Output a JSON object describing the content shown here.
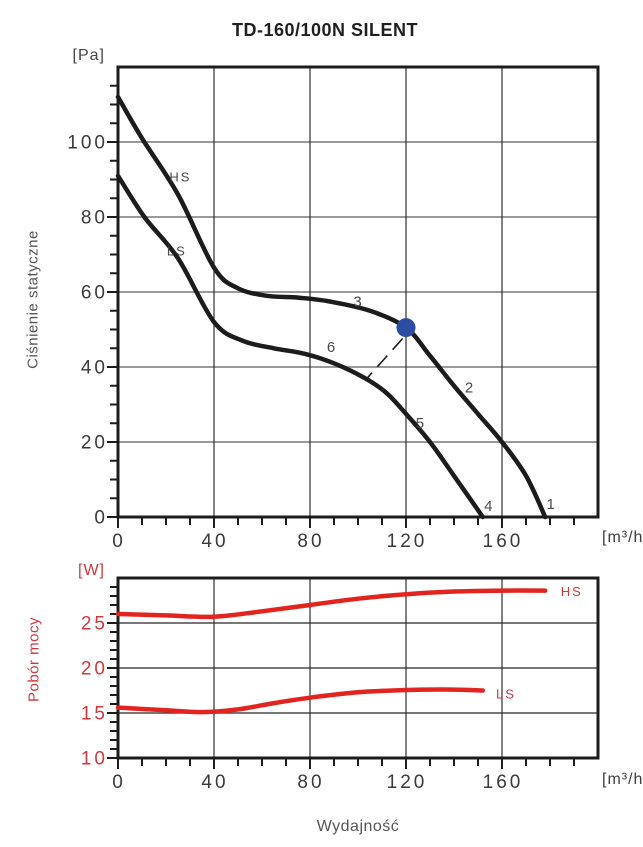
{
  "title": "TD-160/100N SILENT",
  "labels": {
    "pressure_unit": "[Pa]",
    "power_unit": "[W]",
    "flow_unit": "[m³/h]",
    "pressure_axis": "Ciśnienie statyczne",
    "power_axis": "Pobór mocy",
    "flow_axis": "Wydajność"
  },
  "colors": {
    "curve_black": "#1c1c1c",
    "curve_red": "#e22420",
    "red_label": "#cd3a3e",
    "point_blue": "#2c4da1",
    "grid_gray": "#9a9a9a",
    "grid_dark": "#2f2f2f",
    "tick_label": "#3a3a3a",
    "annotation": "#4a4a4a"
  },
  "chart_data": [
    {
      "name": "static-pressure",
      "type": "line",
      "y_unit": "[Pa]",
      "x_unit": "[m³/h]",
      "ylabel": "Ciśnienie statyczne",
      "xlim": [
        0,
        200
      ],
      "ylim": [
        0,
        120
      ],
      "xticks": [
        0,
        40,
        80,
        120,
        160
      ],
      "yticks": [
        0,
        20,
        40,
        60,
        80,
        100
      ],
      "x_minor_step": 10,
      "y_minor_step": 5,
      "grid_x": [
        40,
        80,
        120,
        160
      ],
      "grid_y": [
        20,
        40,
        60,
        80,
        100
      ],
      "series": [
        {
          "name": "HS",
          "color": "#1c1c1c",
          "points": [
            [
              0,
              112
            ],
            [
              10,
              101
            ],
            [
              25,
              86
            ],
            [
              40,
              66.5
            ],
            [
              50,
              61
            ],
            [
              62,
              59
            ],
            [
              75,
              58.5
            ],
            [
              88,
              57.5
            ],
            [
              105,
              55
            ],
            [
              120,
              50.5
            ],
            [
              130,
              43
            ],
            [
              140,
              35
            ],
            [
              150,
              27.5
            ],
            [
              160,
              20
            ],
            [
              170,
              11
            ],
            [
              178,
              0
            ]
          ]
        },
        {
          "name": "LS",
          "color": "#1c1c1c",
          "points": [
            [
              0,
              91
            ],
            [
              11,
              80
            ],
            [
              25,
              69
            ],
            [
              40,
              52
            ],
            [
              52,
              47
            ],
            [
              65,
              45
            ],
            [
              78,
              43.5
            ],
            [
              90,
              41
            ],
            [
              103,
              37
            ],
            [
              112,
              33
            ],
            [
              120,
              27.5
            ],
            [
              130,
              20
            ],
            [
              140,
              11
            ],
            [
              152,
              0
            ]
          ]
        }
      ],
      "annotations": [
        {
          "text": "HS",
          "x": 26,
          "y": 89.5
        },
        {
          "text": "LS",
          "x": 24.5,
          "y": 69.8
        },
        {
          "text": "3",
          "x": 100,
          "y": 56.2
        },
        {
          "text": "6",
          "x": 89,
          "y": 44.0
        },
        {
          "text": "2",
          "x": 146.5,
          "y": 33.2
        },
        {
          "text": "5",
          "x": 126,
          "y": 23.8
        },
        {
          "text": "4",
          "x": 154.5,
          "y": 1.6
        },
        {
          "text": "1",
          "x": 180.5,
          "y": 2.1
        }
      ],
      "operating_point": {
        "x": 120,
        "y": 50.5,
        "color": "#2c4da1"
      },
      "leader_line": {
        "x1": 118.6,
        "y1": 47.6,
        "x2": 103.2,
        "y2": 36.6
      }
    },
    {
      "name": "power-consumption",
      "type": "line",
      "y_unit": "[W]",
      "x_unit": "[m³/h]",
      "ylabel": "Pobór mocy",
      "xlabel": "Wydajność",
      "xlim": [
        0,
        200
      ],
      "ylim": [
        10,
        30
      ],
      "xticks": [
        0,
        40,
        80,
        120,
        160
      ],
      "yticks": [
        10,
        15,
        20,
        25
      ],
      "x_minor_step": 10,
      "y_minor_step": 1,
      "grid_x": [
        40,
        80,
        120,
        160
      ],
      "grid_y": [
        15,
        20,
        25
      ],
      "series": [
        {
          "name": "HS",
          "color": "#e22420",
          "points": [
            [
              0,
              26
            ],
            [
              20,
              25.85
            ],
            [
              40,
              25.7
            ],
            [
              60,
              26.3
            ],
            [
              80,
              27
            ],
            [
              100,
              27.7
            ],
            [
              120,
              28.2
            ],
            [
              140,
              28.5
            ],
            [
              160,
              28.6
            ],
            [
              178,
              28.6
            ]
          ]
        },
        {
          "name": "LS",
          "color": "#e22420",
          "points": [
            [
              0,
              15.6
            ],
            [
              20,
              15.3
            ],
            [
              35,
              15.1
            ],
            [
              50,
              15.4
            ],
            [
              65,
              16.1
            ],
            [
              80,
              16.7
            ],
            [
              100,
              17.3
            ],
            [
              120,
              17.55
            ],
            [
              140,
              17.6
            ],
            [
              152,
              17.5
            ]
          ]
        }
      ],
      "annotations": [
        {
          "text": "HS",
          "x": 184.5,
          "y": 28.0,
          "anchor": "start",
          "color": "#cd3a3e"
        },
        {
          "text": "LS",
          "x": 157.5,
          "y": 16.6,
          "anchor": "start",
          "color": "#cd3a3e"
        }
      ]
    }
  ]
}
